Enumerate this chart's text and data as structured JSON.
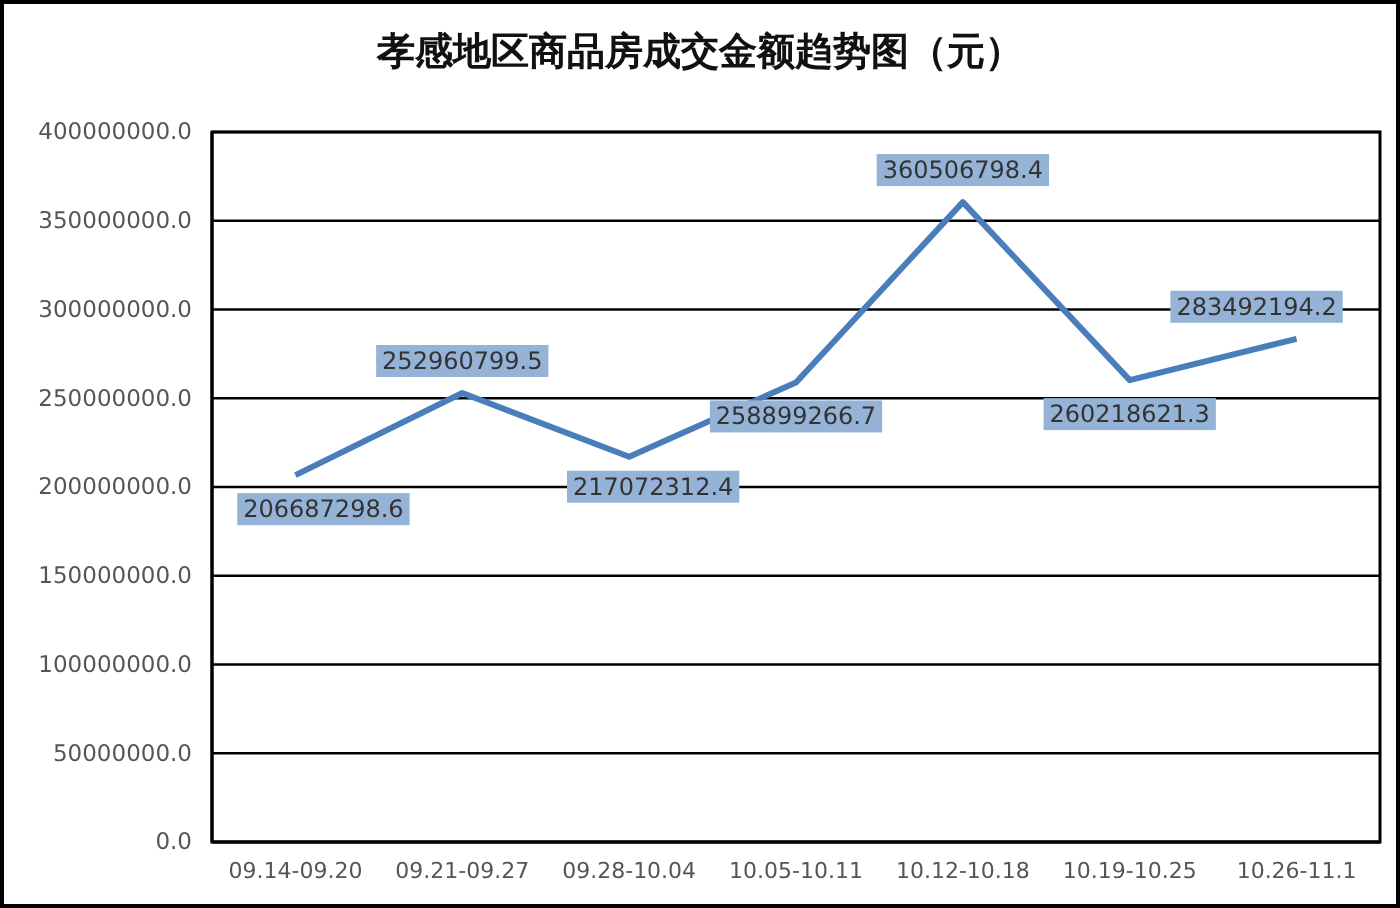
{
  "chart_data": {
    "type": "line",
    "title": "孝感地区商品房成交金额趋势图（元）",
    "categories": [
      "09.14-09.20",
      "09.21-09.27",
      "09.28-10.04",
      "10.05-10.11",
      "10.12-10.18",
      "10.19-10.25",
      "10.26-11.1"
    ],
    "series": [
      {
        "color": "#4a7ebb",
        "values": [
          206687298.6,
          252960799.5,
          217072312.4,
          258899266.7,
          360506798.4,
          260218621.3,
          283492194.2
        ]
      }
    ],
    "ylim": [
      0,
      400000000
    ],
    "yticks": [
      {
        "value": 0,
        "label": "0.0"
      },
      {
        "value": 50000000,
        "label": "50000000.0"
      },
      {
        "value": 100000000,
        "label": "100000000.0"
      },
      {
        "value": 150000000,
        "label": "150000000.0"
      },
      {
        "value": 200000000,
        "label": "200000000.0"
      },
      {
        "value": 250000000,
        "label": "250000000.0"
      },
      {
        "value": 300000000,
        "label": "300000000.0"
      },
      {
        "value": 350000000,
        "label": "350000000.0"
      },
      {
        "value": 400000000,
        "label": "400000000.0"
      }
    ],
    "grid": "y",
    "data_labels": true,
    "marker": "none",
    "line_style": "solid"
  }
}
